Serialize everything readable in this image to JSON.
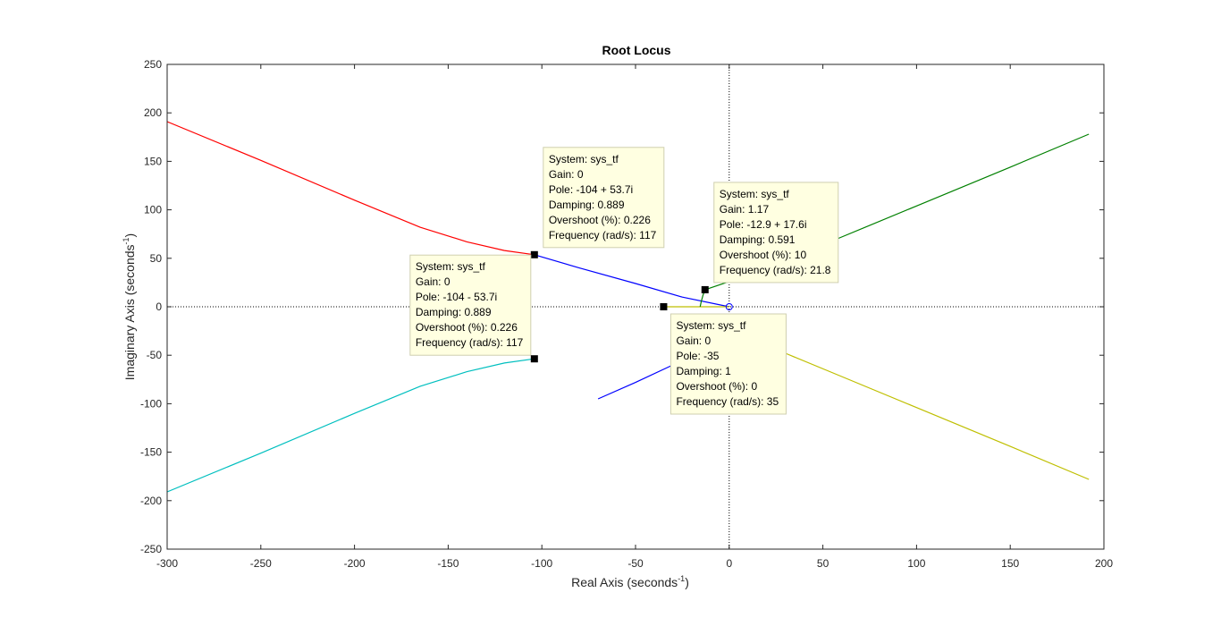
{
  "chart_data": {
    "type": "line",
    "title": "Root Locus",
    "xlabel": "Real Axis (seconds",
    "xlabel_sup": "-1",
    "xlabel_close": ")",
    "ylabel": "Imaginary Axis (seconds",
    "ylabel_sup": "-1",
    "ylabel_close": ")",
    "xlim": [
      -300,
      200
    ],
    "ylim": [
      -250,
      250
    ],
    "xticks": [
      -300,
      -250,
      -200,
      -150,
      -100,
      -50,
      0,
      50,
      100,
      150,
      200
    ],
    "yticks": [
      -250,
      -200,
      -150,
      -100,
      -50,
      0,
      50,
      100,
      150,
      200,
      250
    ],
    "xtick_labels": [
      "-300",
      "-250",
      "-200",
      "-150",
      "-100",
      "-50",
      "0",
      "50",
      "100",
      "150",
      "200"
    ],
    "ytick_labels": [
      "-250",
      "-200",
      "-150",
      "-100",
      "-50",
      "0",
      "50",
      "100",
      "150",
      "200",
      "250"
    ],
    "grid": false,
    "colors": {
      "red": "#ff0000",
      "cyan": "#00bfbf",
      "green": "#008000",
      "yellow": "#bfbf00",
      "blue": "#0000ff",
      "axis": "#262626",
      "datatip_bg": "#ffffe1",
      "datatip_border": "#cfcfb0"
    },
    "series": [
      {
        "color": "red",
        "points": [
          [
            -104,
            53.7
          ],
          [
            -120,
            58
          ],
          [
            -140,
            67
          ],
          [
            -165,
            82
          ],
          [
            -200,
            110
          ],
          [
            -250,
            151
          ],
          [
            -300,
            191
          ],
          [
            -305,
            195
          ]
        ]
      },
      {
        "color": "cyan",
        "points": [
          [
            -104,
            -53.7
          ],
          [
            -120,
            -58
          ],
          [
            -140,
            -67
          ],
          [
            -165,
            -82
          ],
          [
            -200,
            -110
          ],
          [
            -250,
            -151
          ],
          [
            -300,
            -191
          ],
          [
            -305,
            -195
          ]
        ]
      },
      {
        "color": "green",
        "points": [
          [
            -12.9,
            17.6
          ],
          [
            0,
            26
          ],
          [
            30,
            48
          ],
          [
            60,
            72
          ],
          [
            100,
            104
          ],
          [
            150,
            144
          ],
          [
            192,
            178
          ]
        ]
      },
      {
        "color": "yellow",
        "points": [
          [
            -12.9,
            -17.6
          ],
          [
            0,
            -26
          ],
          [
            30,
            -48
          ],
          [
            60,
            -72
          ],
          [
            100,
            -104
          ],
          [
            150,
            -144
          ],
          [
            192,
            -178
          ]
        ]
      },
      {
        "color": "blue",
        "points": [
          [
            -104,
            53.7
          ],
          [
            -80,
            40
          ],
          [
            -50,
            24
          ],
          [
            -25,
            10
          ],
          [
            0,
            0
          ]
        ]
      },
      {
        "color": "blue",
        "points": [
          [
            -70,
            -95
          ],
          [
            -50,
            -78
          ],
          [
            -30,
            -60
          ],
          [
            -15,
            -46
          ]
        ]
      },
      {
        "color": "yellow",
        "points": [
          [
            -35,
            0
          ],
          [
            0,
            0
          ]
        ]
      },
      {
        "color": "green",
        "points": [
          [
            -12.9,
            17.6
          ],
          [
            -14,
            12
          ],
          [
            -15,
            5
          ],
          [
            -15.5,
            0
          ]
        ]
      }
    ],
    "zeros": [
      [
        0,
        0
      ]
    ],
    "datatips": [
      {
        "point": [
          -104,
          53.7
        ],
        "lines": [
          "System: sys_tf",
          "Gain: 0",
          "Pole: -104 + 53.7i",
          "Damping: 0.889",
          "Overshoot (%): 0.226",
          "Frequency (rad/s): 117"
        ]
      },
      {
        "point": [
          -104,
          -53.7
        ],
        "lines": [
          "System: sys_tf",
          "Gain: 0",
          "Pole: -104 - 53.7i",
          "Damping: 0.889",
          "Overshoot (%): 0.226",
          "Frequency (rad/s): 117"
        ]
      },
      {
        "point": [
          -12.9,
          17.6
        ],
        "lines": [
          "System: sys_tf",
          "Gain: 1.17",
          "Pole: -12.9 + 17.6i",
          "Damping: 0.591",
          "Overshoot (%): 10",
          "Frequency (rad/s): 21.8"
        ]
      },
      {
        "point": [
          -35,
          0
        ],
        "lines": [
          "System: sys_tf",
          "Gain: 0",
          "Pole: -35",
          "Damping: 1",
          "Overshoot (%): 0",
          "Frequency (rad/s): 35"
        ]
      }
    ]
  }
}
